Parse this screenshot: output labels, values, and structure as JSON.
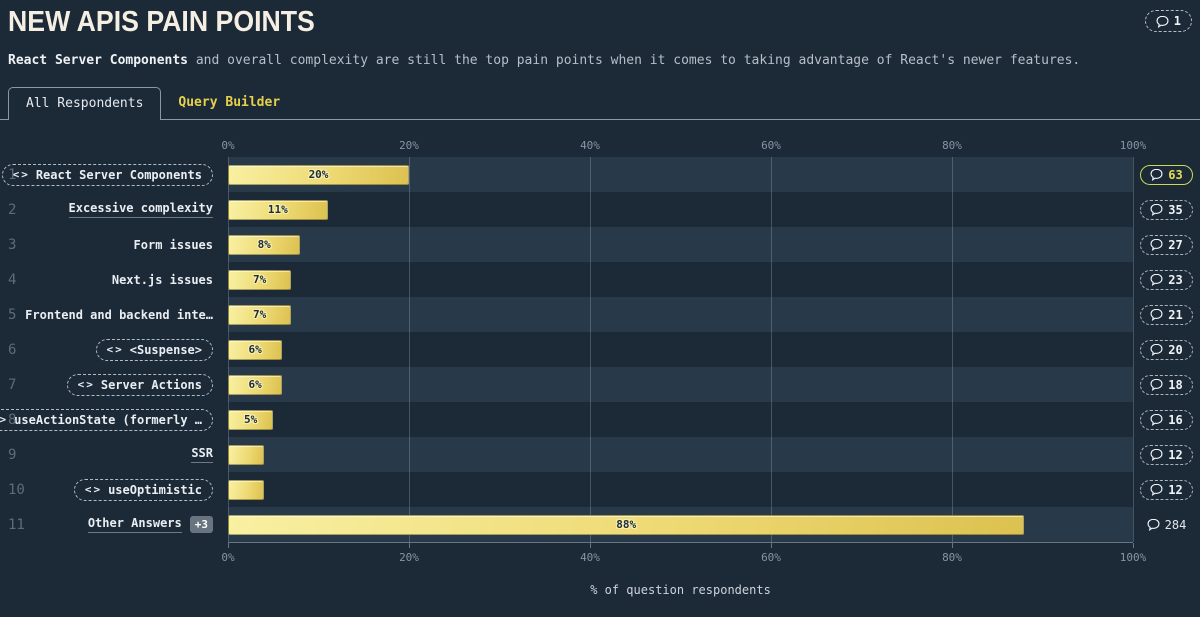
{
  "header": {
    "title": "NEW APIS PAIN POINTS",
    "comments_count": "1",
    "subtitle_bold": "React Server Components",
    "subtitle_rest": " and overall complexity are still the top pain points when it comes to taking advantage of React's newer features."
  },
  "tabs": [
    {
      "label": "All Respondents",
      "active": true
    },
    {
      "label": "Query Builder",
      "active": false
    }
  ],
  "chart_data": {
    "type": "bar",
    "orientation": "horizontal",
    "title": "NEW APIS PAIN POINTS",
    "xlabel": "% of question respondents",
    "xlim": [
      0,
      100
    ],
    "x_ticks": [
      {
        "value": 0,
        "label": "0%"
      },
      {
        "value": 20,
        "label": "20%"
      },
      {
        "value": 40,
        "label": "40%"
      },
      {
        "value": 60,
        "label": "60%"
      },
      {
        "value": 80,
        "label": "80%"
      },
      {
        "value": 100,
        "label": "100%"
      }
    ],
    "grid": true,
    "rows": [
      {
        "rank": "1",
        "label": "React Server Components",
        "label_style": "code-pill",
        "value": 20,
        "value_label": "20%",
        "comments": "63",
        "badge_style": "highlight"
      },
      {
        "rank": "2",
        "label": "Excessive complexity",
        "label_style": "underline",
        "value": 11,
        "value_label": "11%",
        "comments": "35",
        "badge_style": "dashed"
      },
      {
        "rank": "3",
        "label": "Form issues",
        "label_style": "plain",
        "value": 8,
        "value_label": "8%",
        "comments": "27",
        "badge_style": "dashed"
      },
      {
        "rank": "4",
        "label": "Next.js issues",
        "label_style": "plain",
        "value": 7,
        "value_label": "7%",
        "comments": "23",
        "badge_style": "dashed"
      },
      {
        "rank": "5",
        "label": "Frontend and backend inte…",
        "label_style": "plain",
        "value": 7,
        "value_label": "7%",
        "comments": "21",
        "badge_style": "dashed"
      },
      {
        "rank": "6",
        "label": "<Suspense>",
        "label_style": "code-pill",
        "value": 6,
        "value_label": "6%",
        "comments": "20",
        "badge_style": "dashed"
      },
      {
        "rank": "7",
        "label": "Server Actions",
        "label_style": "code-pill",
        "value": 6,
        "value_label": "6%",
        "comments": "18",
        "badge_style": "dashed"
      },
      {
        "rank": "8",
        "label": "useActionState (formerly …",
        "label_style": "code-pill",
        "value": 5,
        "value_label": "5%",
        "comments": "16",
        "badge_style": "dashed"
      },
      {
        "rank": "9",
        "label": "SSR",
        "label_style": "underline",
        "value": 4,
        "value_label": "",
        "comments": "12",
        "badge_style": "dashed"
      },
      {
        "rank": "10",
        "label": "useOptimistic",
        "label_style": "code-pill",
        "value": 4,
        "value_label": "",
        "comments": "12",
        "badge_style": "dashed"
      },
      {
        "rank": "11",
        "label": "Other Answers",
        "label_style": "underline",
        "extra_badge": "+3",
        "value": 88,
        "value_label": "88%",
        "comments": "284",
        "badge_style": "plain"
      }
    ]
  },
  "icons": {
    "comment_bubble": "comment-bubble-icon",
    "code": "code-icon",
    "code_glyph": "<>"
  },
  "colors": {
    "background": "#1c2936",
    "row_band": "#28394a",
    "bar_gradient_start": "#f8f0a2",
    "bar_gradient_end": "#dcc14f",
    "accent_yellow": "#e6d14c",
    "highlight_badge_border": "#ccd75c",
    "title_cream": "#f4efe2"
  }
}
